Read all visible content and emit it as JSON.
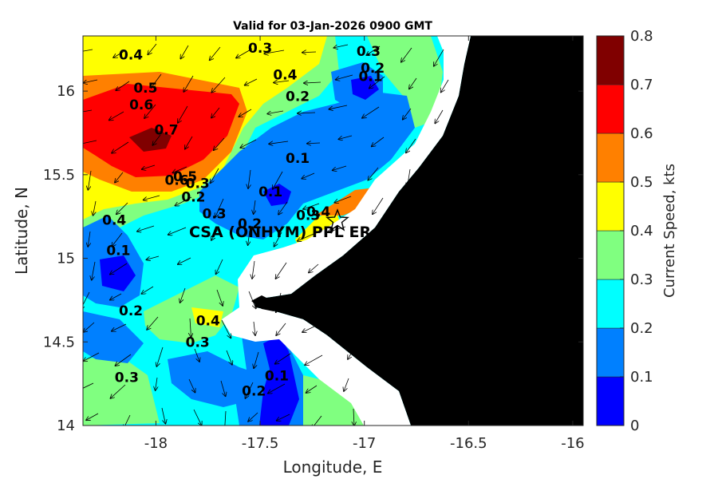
{
  "title": "Valid for 03-Jan-2026 0900 GMT",
  "axes": {
    "xlabel": "Longitude, E",
    "ylabel": "Latitude, N",
    "x_ticks": [
      "-18",
      "-17.5",
      "-17",
      "-16.5",
      "-16"
    ],
    "y_ticks": [
      "16",
      "15.5",
      "15",
      "14.5",
      "14"
    ]
  },
  "colorbar": {
    "label": "Current Speed, kts",
    "ticks": [
      "0",
      "0.1",
      "0.2",
      "0.3",
      "0.4",
      "0.5",
      "0.6",
      "0.7",
      "0.8"
    ],
    "colors": [
      "#0000ff",
      "#0080ff",
      "#00ffff",
      "#80ff80",
      "#ffff00",
      "#ff8000",
      "#ff0000",
      "#800000"
    ]
  },
  "station": {
    "label": "CSA (ONHYM) PPL ER",
    "symbol": "star-icon",
    "lon": -17.1,
    "lat": 15.24
  },
  "contour_labels": [
    {
      "text": "0.4",
      "lon": -18.12,
      "lat": 16.19
    },
    {
      "text": "0.5",
      "lon": -18.05,
      "lat": 15.99
    },
    {
      "text": "0.6",
      "lon": -18.07,
      "lat": 15.89
    },
    {
      "text": "0.7",
      "lon": -17.95,
      "lat": 15.74
    },
    {
      "text": "0.6",
      "lon": -17.9,
      "lat": 15.44
    },
    {
      "text": "0.5",
      "lon": -17.86,
      "lat": 15.46
    },
    {
      "text": "0.3",
      "lon": -17.8,
      "lat": 15.42
    },
    {
      "text": "0.2",
      "lon": -17.82,
      "lat": 15.34
    },
    {
      "text": "0.3",
      "lon": -17.72,
      "lat": 15.24
    },
    {
      "text": "0.4",
      "lon": -18.2,
      "lat": 15.2
    },
    {
      "text": "0.1",
      "lon": -18.18,
      "lat": 15.02
    },
    {
      "text": "0.3",
      "lon": -17.5,
      "lat": 16.23
    },
    {
      "text": "0.4",
      "lon": -17.38,
      "lat": 16.07
    },
    {
      "text": "0.2",
      "lon": -17.32,
      "lat": 15.94
    },
    {
      "text": "0.1",
      "lon": -17.32,
      "lat": 15.57
    },
    {
      "text": "0.1",
      "lon": -17.45,
      "lat": 15.37
    },
    {
      "text": "0.3",
      "lon": -16.98,
      "lat": 16.21
    },
    {
      "text": "0.2",
      "lon": -16.96,
      "lat": 16.11
    },
    {
      "text": "0.1",
      "lon": -16.97,
      "lat": 16.06
    },
    {
      "text": "0.4",
      "lon": -17.22,
      "lat": 15.25
    },
    {
      "text": "0.3",
      "lon": -17.27,
      "lat": 15.23
    },
    {
      "text": "0.2",
      "lon": -17.55,
      "lat": 15.18
    },
    {
      "text": "0.2",
      "lon": -18.12,
      "lat": 14.66
    },
    {
      "text": "0.4",
      "lon": -17.75,
      "lat": 14.6
    },
    {
      "text": "0.3",
      "lon": -17.8,
      "lat": 14.47
    },
    {
      "text": "0.3",
      "lon": -18.14,
      "lat": 14.26
    },
    {
      "text": "0.2",
      "lon": -17.53,
      "lat": 14.18
    },
    {
      "text": "0.1",
      "lon": -17.42,
      "lat": 14.27
    }
  ]
}
